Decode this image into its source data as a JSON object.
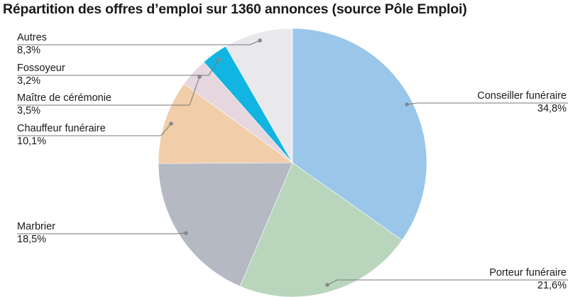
{
  "chart_data": {
    "type": "pie",
    "title": "Répartition des offres d’emploi sur 1360 annonces (source Pôle Emploi)",
    "start_angle_deg": 0,
    "direction": "clockwise",
    "slices": [
      {
        "label": "Conseiller funéraire",
        "value": 34.8,
        "value_label": "34,8%",
        "color": "#9ac6ea",
        "label_side": "right"
      },
      {
        "label": "Porteur funéraire",
        "value": 21.6,
        "value_label": "21,6%",
        "color": "#b9d6bd",
        "label_side": "right"
      },
      {
        "label": "Marbrier",
        "value": 18.5,
        "value_label": "18,5%",
        "color": "#b4b9c3",
        "label_side": "left"
      },
      {
        "label": "Chauffeur funéraire",
        "value": 10.1,
        "value_label": "10,1%",
        "color": "#f1cdaa",
        "label_side": "left"
      },
      {
        "label": "Maître de cérémonie",
        "value": 3.5,
        "value_label": "3,5%",
        "color": "#e6d6de",
        "label_side": "left"
      },
      {
        "label": "Fossoyeur",
        "value": 3.2,
        "value_label": "3,2%",
        "color": "#12b5e1",
        "label_side": "left"
      },
      {
        "label": "Autres",
        "value": 8.3,
        "value_label": "8,3%",
        "color": "#e9e9ec",
        "label_side": "left"
      }
    ],
    "leader_color": "#777777"
  }
}
